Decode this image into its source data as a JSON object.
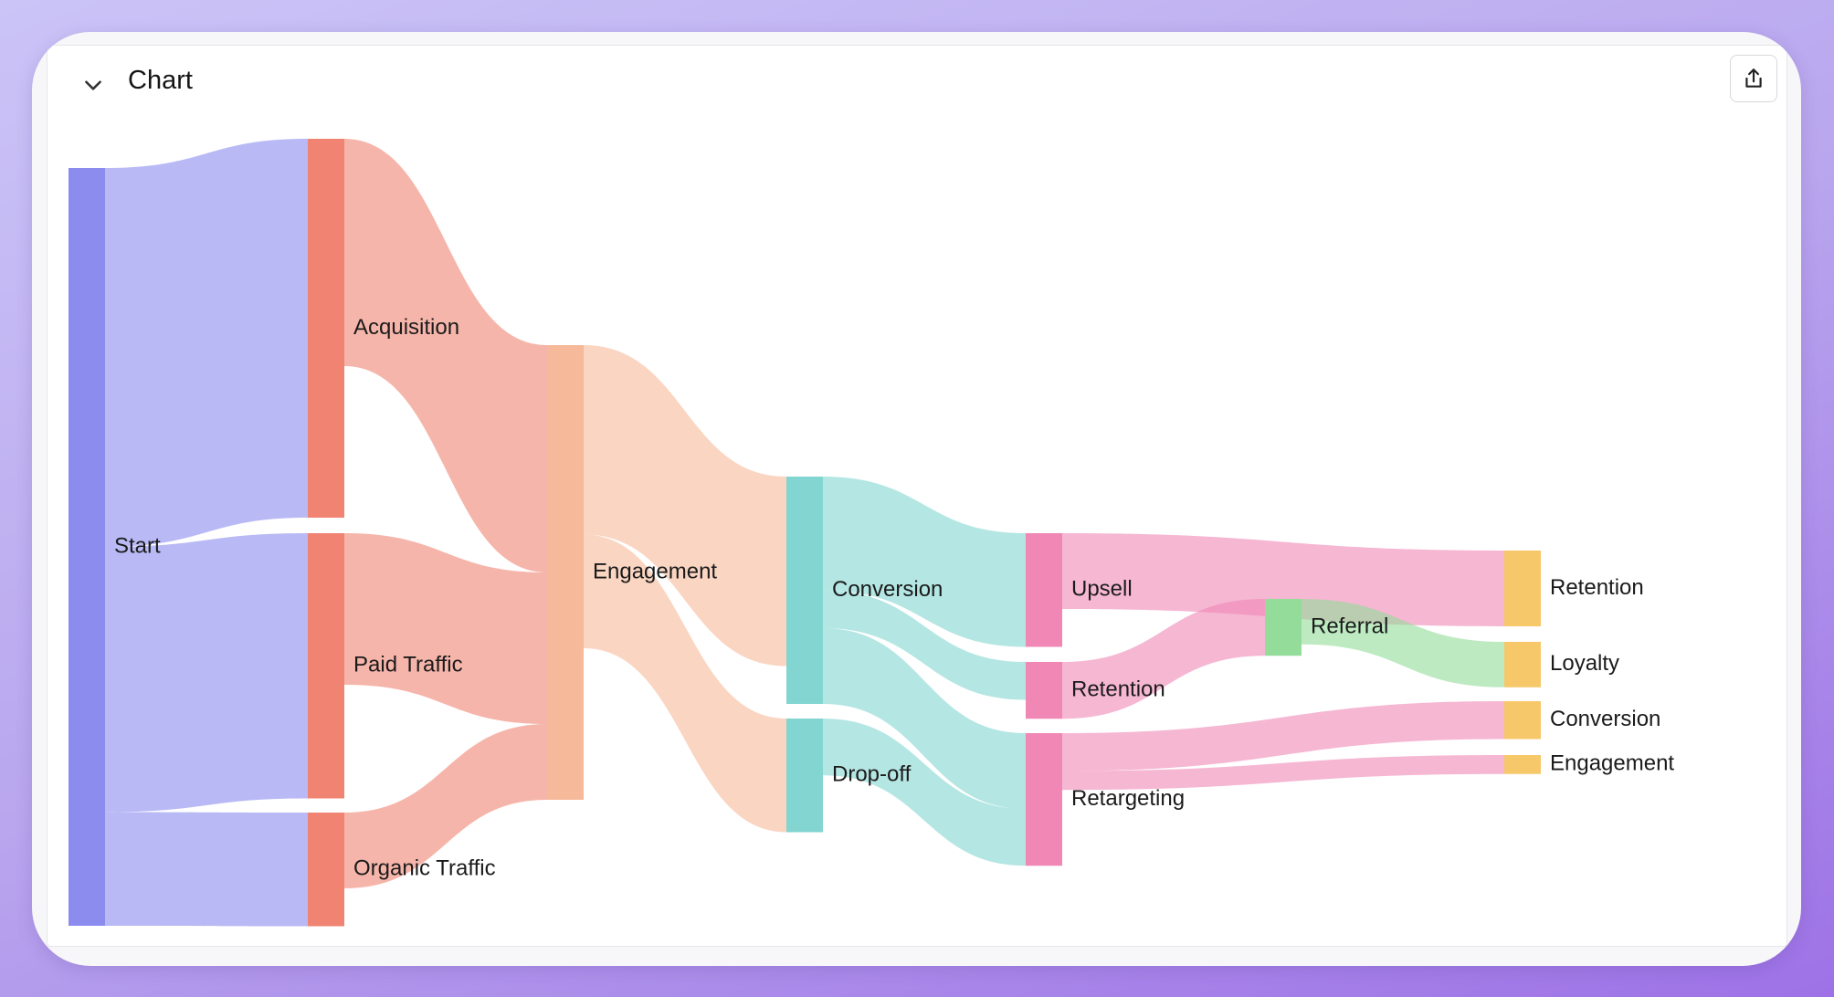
{
  "header": {
    "title": "Chart",
    "collapse_icon": "chevron-down-icon",
    "share_icon": "share-icon"
  },
  "chart_data": {
    "type": "sankey",
    "nodes": [
      {
        "id": "start",
        "label": "Start",
        "color": "#8b8cee"
      },
      {
        "id": "acquisition",
        "label": "Acquisition",
        "color": "#f08372"
      },
      {
        "id": "paid",
        "label": "Paid Traffic",
        "color": "#f08372"
      },
      {
        "id": "organic",
        "label": "Organic Traffic",
        "color": "#f08372"
      },
      {
        "id": "engagement",
        "label": "Engagement",
        "color": "#f6b99a"
      },
      {
        "id": "conversion",
        "label": "Conversion",
        "color": "#82d5d0"
      },
      {
        "id": "dropoff",
        "label": "Drop-off",
        "color": "#82d5d0"
      },
      {
        "id": "upsell",
        "label": "Upsell",
        "color": "#f087b5"
      },
      {
        "id": "retention",
        "label": "Retention",
        "color": "#f087b5"
      },
      {
        "id": "retargeting",
        "label": "Retargeting",
        "color": "#f087b5"
      },
      {
        "id": "referral",
        "label": "Referral",
        "color": "#93dc9a"
      },
      {
        "id": "retention2",
        "label": "Retention",
        "color": "#f7c86a"
      },
      {
        "id": "loyalty",
        "label": "Loyalty",
        "color": "#f7c86a"
      },
      {
        "id": "conversion2",
        "label": "Conversion",
        "color": "#f7c86a"
      },
      {
        "id": "engagement2",
        "label": "Engagement",
        "color": "#f7c86a"
      }
    ],
    "links": [
      {
        "source": "start",
        "target": "acquisition",
        "value": 100
      },
      {
        "source": "start",
        "target": "paid",
        "value": 70
      },
      {
        "source": "start",
        "target": "organic",
        "value": 30
      },
      {
        "source": "acquisition",
        "target": "engagement",
        "value": 60
      },
      {
        "source": "paid",
        "target": "engagement",
        "value": 40
      },
      {
        "source": "organic",
        "target": "engagement",
        "value": 20
      },
      {
        "source": "engagement",
        "target": "conversion",
        "value": 50
      },
      {
        "source": "engagement",
        "target": "dropoff",
        "value": 30
      },
      {
        "source": "conversion",
        "target": "upsell",
        "value": 30
      },
      {
        "source": "conversion",
        "target": "retention",
        "value": 10
      },
      {
        "source": "conversion",
        "target": "retargeting",
        "value": 20
      },
      {
        "source": "dropoff",
        "target": "retargeting",
        "value": 15
      },
      {
        "source": "upsell",
        "target": "retention2",
        "value": 20
      },
      {
        "source": "retention",
        "target": "referral",
        "value": 15
      },
      {
        "source": "referral",
        "target": "loyalty",
        "value": 12
      },
      {
        "source": "retargeting",
        "target": "conversion2",
        "value": 10
      },
      {
        "source": "retargeting",
        "target": "engagement2",
        "value": 5
      }
    ]
  }
}
